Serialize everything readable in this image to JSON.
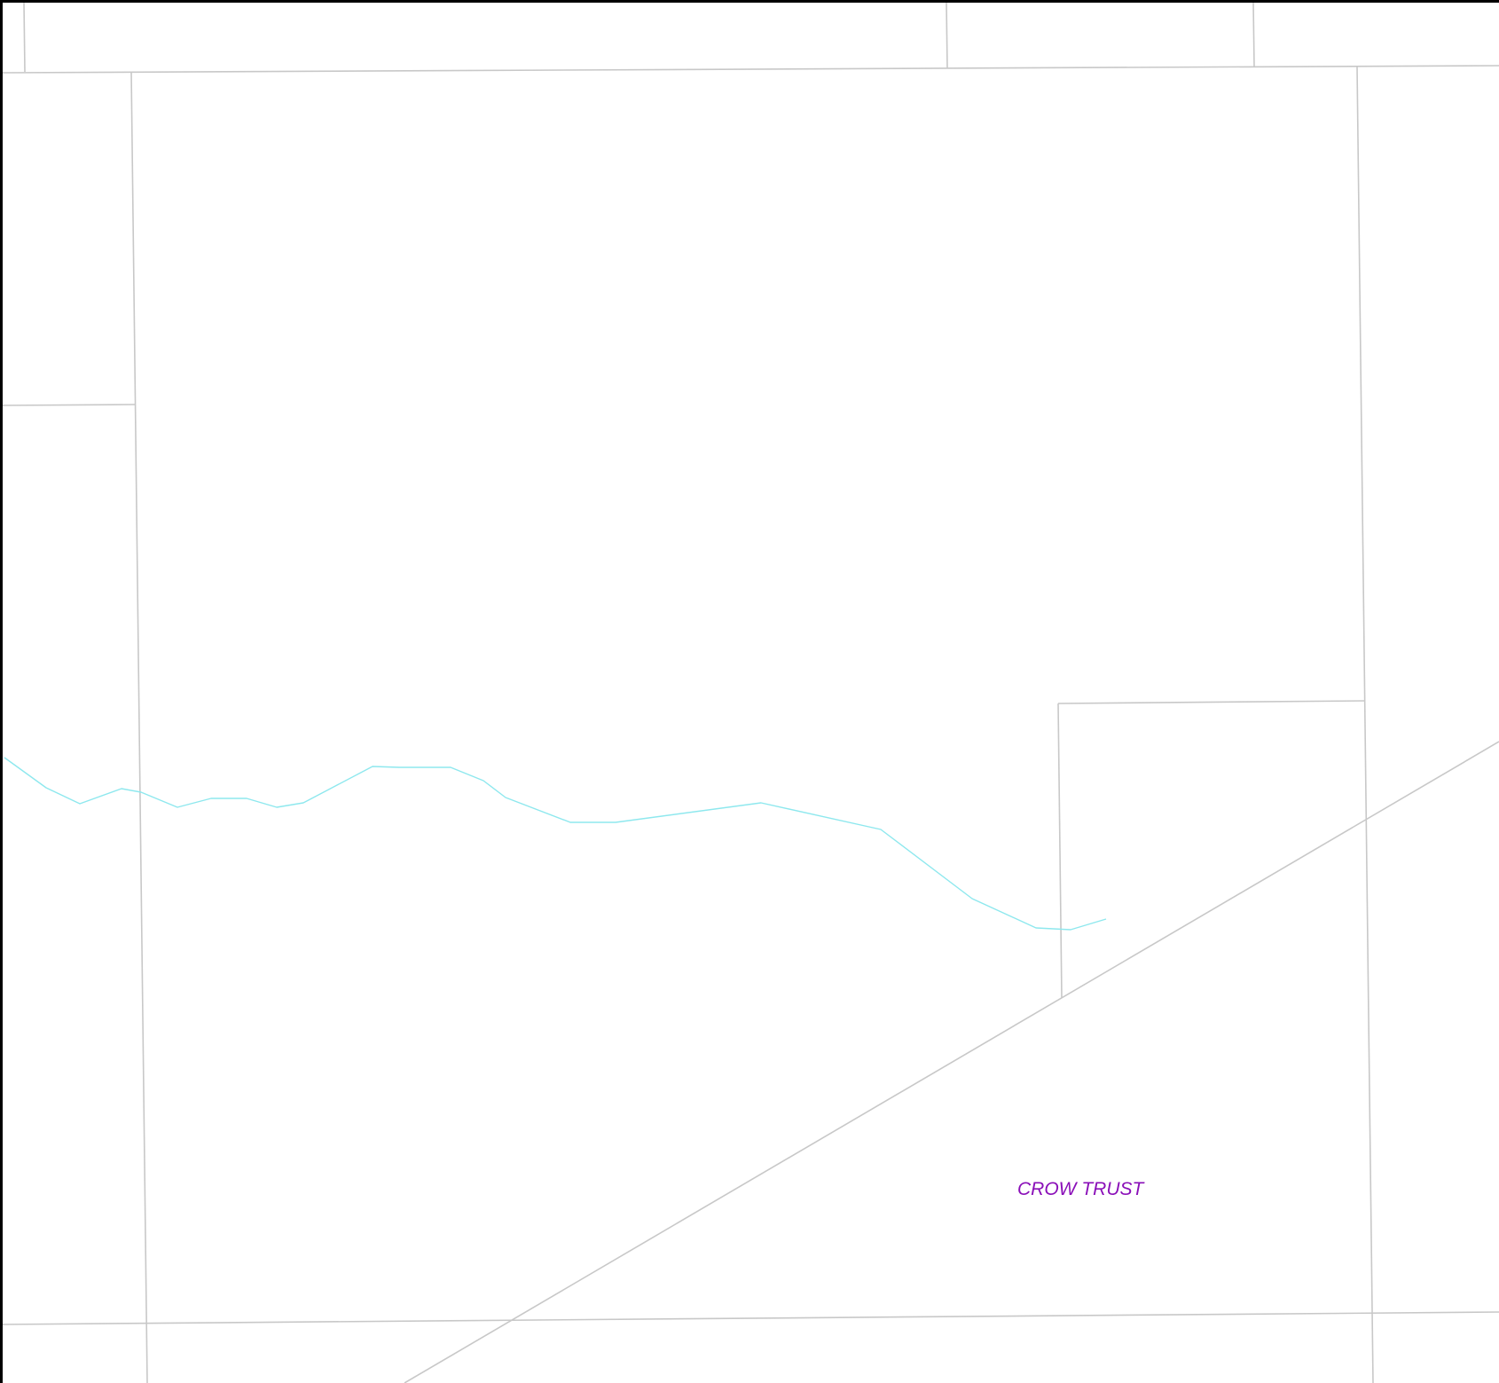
{
  "map": {
    "labels": {
      "owner": "CROW TRUST"
    },
    "colors": {
      "background": "#ffffff",
      "parcel_boundary": "#c8c8c8",
      "stream": "#8ee8ee",
      "owner_label": "#8a0fb8",
      "frame": "#000000"
    },
    "features": {
      "parcel_boundaries": "parcel-boundary-lines",
      "stream": "stream-line",
      "railroad": "diagonal-boundary-line"
    }
  }
}
